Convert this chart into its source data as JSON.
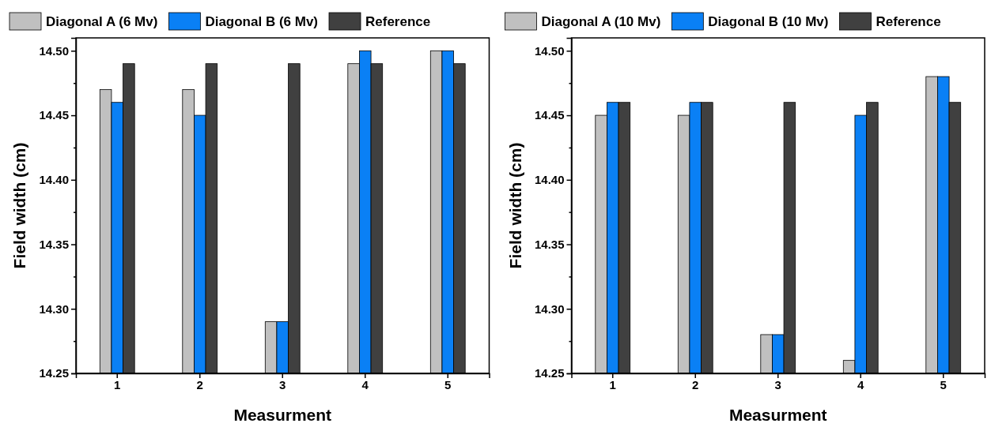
{
  "chart_data": [
    {
      "type": "bar",
      "xlabel": "Measurment",
      "ylabel": "Field width (cm)",
      "categories": [
        "1",
        "2",
        "3",
        "4",
        "5"
      ],
      "series": [
        {
          "name": "Diagonal A (6 Mv)",
          "color": "#c0c0c0",
          "values": [
            14.47,
            14.47,
            14.29,
            14.49,
            14.5
          ]
        },
        {
          "name": "Diagonal B (6 Mv)",
          "color": "#0a80f5",
          "values": [
            14.46,
            14.45,
            14.29,
            14.5,
            14.5
          ]
        },
        {
          "name": "Reference",
          "color": "#404040",
          "values": [
            14.49,
            14.49,
            14.49,
            14.49,
            14.49
          ]
        }
      ],
      "ylim": [
        14.25,
        14.51
      ],
      "yticks": [
        14.25,
        {
          "value": 14.275,
          "label": null
        },
        {
          "value": 14.3,
          "label": "14.30"
        },
        {
          "value": 14.325,
          "label": null
        },
        14.35,
        {
          "value": 14.375,
          "label": null
        },
        {
          "value": 14.4,
          "label": "14.40"
        },
        {
          "value": 14.425,
          "label": null
        },
        14.45,
        {
          "value": 14.475,
          "label": null
        },
        {
          "value": 14.5,
          "label": "14.50"
        }
      ],
      "grid": false,
      "legend": "top"
    },
    {
      "type": "bar",
      "xlabel": "Measurment",
      "ylabel": "Field width (cm)",
      "categories": [
        "1",
        "2",
        "3",
        "4",
        "5"
      ],
      "series": [
        {
          "name": "Diagonal A (10 Mv)",
          "color": "#c0c0c0",
          "values": [
            14.45,
            14.45,
            14.28,
            14.26,
            14.48
          ]
        },
        {
          "name": "Diagonal B (10 Mv)",
          "color": "#0a80f5",
          "values": [
            14.46,
            14.46,
            14.28,
            14.45,
            14.48
          ]
        },
        {
          "name": "Reference",
          "color": "#404040",
          "values": [
            14.46,
            14.46,
            14.46,
            14.46,
            14.46
          ]
        }
      ],
      "ylim": [
        14.25,
        14.51
      ],
      "yticks": [
        14.25,
        {
          "value": 14.275,
          "label": null
        },
        {
          "value": 14.3,
          "label": "14.30"
        },
        {
          "value": 14.325,
          "label": null
        },
        14.35,
        {
          "value": 14.375,
          "label": null
        },
        {
          "value": 14.4,
          "label": "14.40"
        },
        {
          "value": 14.425,
          "label": null
        },
        14.45,
        {
          "value": 14.475,
          "label": null
        },
        {
          "value": 14.5,
          "label": "14.50"
        }
      ],
      "grid": false,
      "legend": "top"
    }
  ]
}
